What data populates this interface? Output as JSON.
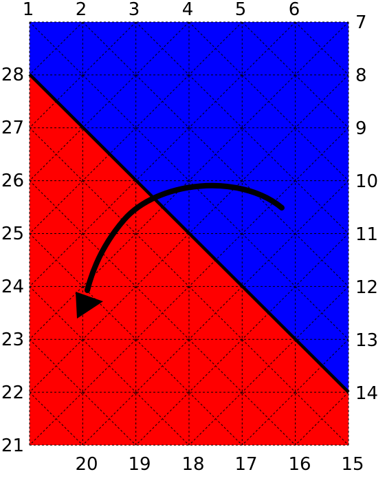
{
  "grid": {
    "cols": 6,
    "rows": 8,
    "line_color": "#000000"
  },
  "regions": {
    "upper_color": "#0000ff",
    "lower_color": "#ff0000",
    "boundary_color": "#000000"
  },
  "labels": {
    "top": [
      "1",
      "2",
      "3",
      "4",
      "5",
      "6"
    ],
    "right": [
      "7",
      "8",
      "9",
      "10",
      "11",
      "12",
      "13",
      "14"
    ],
    "bottom": [
      "15",
      "16",
      "17",
      "18",
      "19",
      "20"
    ],
    "left": [
      "21",
      "22",
      "23",
      "24",
      "25",
      "26",
      "27",
      "28"
    ]
  },
  "arrow": {
    "color": "#000000"
  }
}
